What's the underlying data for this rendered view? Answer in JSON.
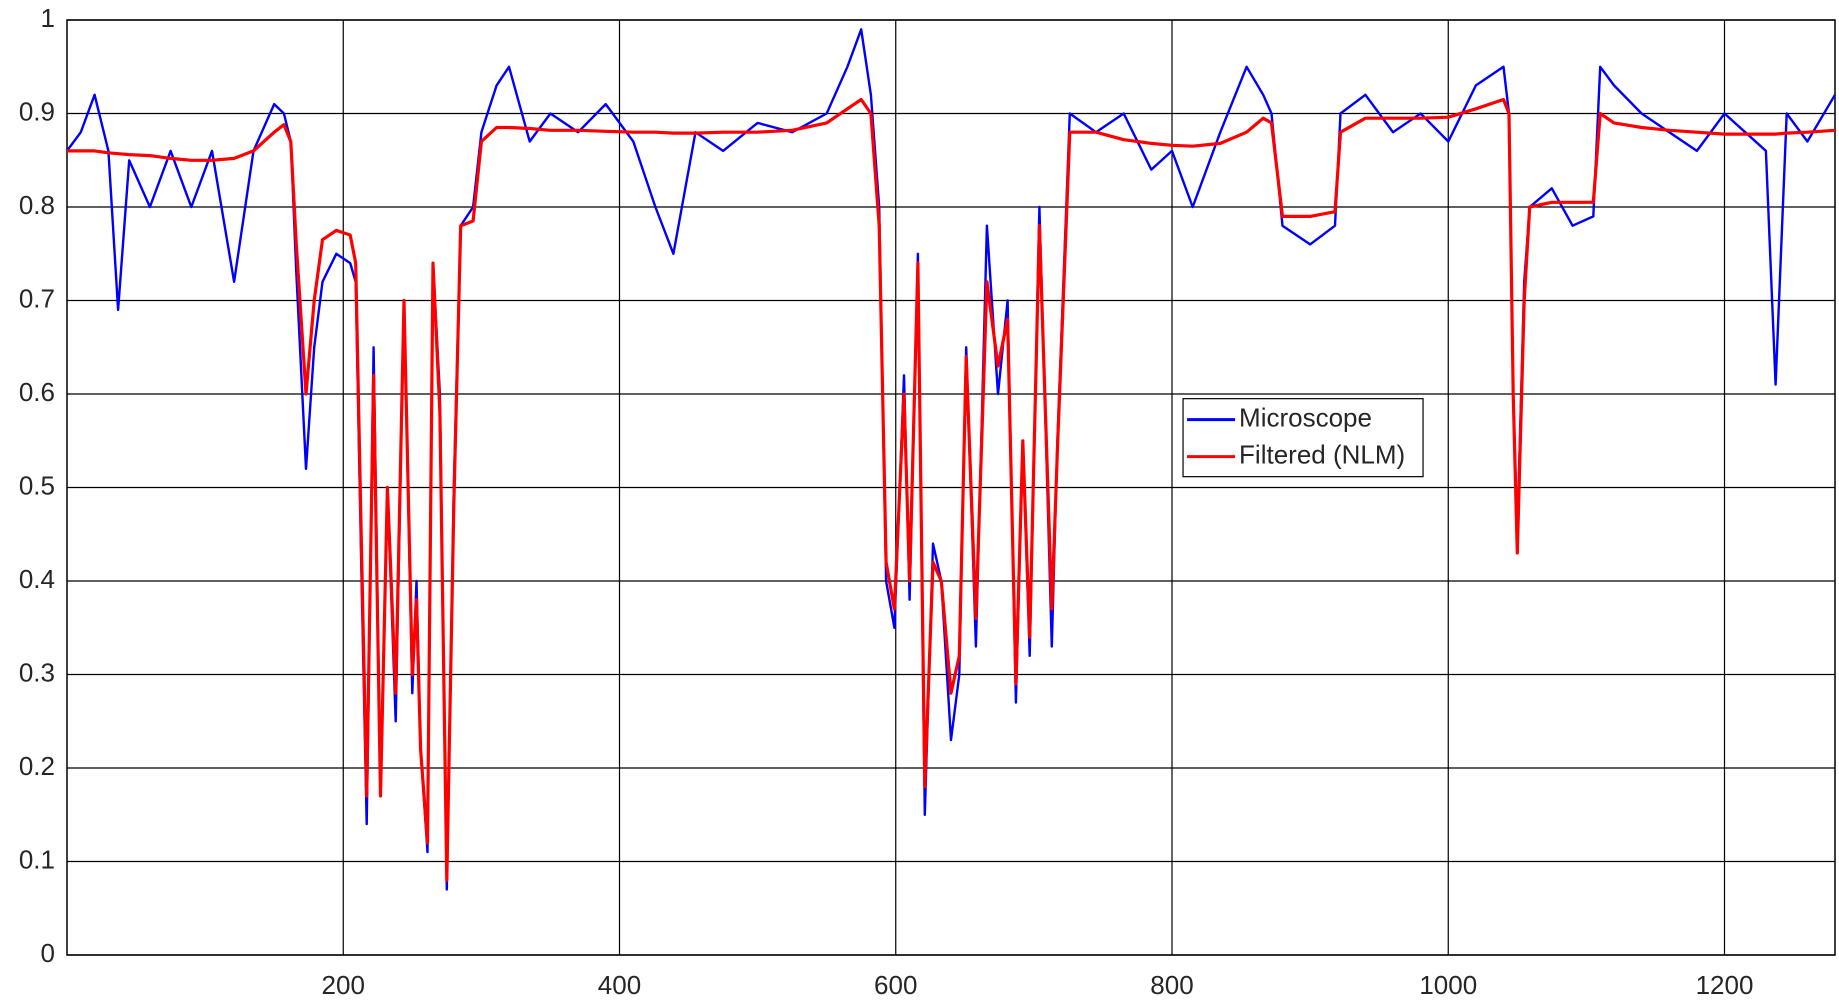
{
  "chart_data": {
    "type": "line",
    "x": [
      0,
      10,
      20,
      30,
      37,
      45,
      60,
      75,
      90,
      105,
      121,
      135,
      150,
      157,
      162,
      166,
      173,
      179,
      185,
      195,
      205,
      209,
      213,
      217,
      222,
      227,
      232,
      238,
      244,
      250,
      253,
      256,
      261,
      265,
      270,
      275,
      280,
      285,
      294,
      300,
      311,
      320,
      335,
      350,
      370,
      390,
      410,
      426,
      439,
      455,
      475,
      500,
      525,
      550,
      565,
      575,
      582,
      588,
      593,
      599,
      606,
      610,
      616,
      621,
      627,
      633,
      640,
      646,
      651,
      658,
      666,
      674,
      681,
      687,
      692,
      697,
      704,
      713,
      717,
      726,
      745,
      765,
      785,
      800,
      815,
      835,
      854,
      866,
      872,
      880,
      900,
      918,
      922,
      940,
      960,
      980,
      1000,
      1020,
      1040,
      1044,
      1047,
      1050,
      1055,
      1059,
      1075,
      1090,
      1105,
      1110,
      1120,
      1140,
      1160,
      1180,
      1200,
      1215,
      1230,
      1237,
      1245,
      1260,
      1280
    ],
    "series": [
      {
        "name": "Microscope",
        "color": "#0000ff",
        "values": [
          0.86,
          0.88,
          0.92,
          0.86,
          0.69,
          0.85,
          0.8,
          0.86,
          0.8,
          0.86,
          0.72,
          0.86,
          0.91,
          0.9,
          0.87,
          0.73,
          0.52,
          0.65,
          0.72,
          0.75,
          0.74,
          0.72,
          0.42,
          0.14,
          0.65,
          0.17,
          0.5,
          0.25,
          0.7,
          0.28,
          0.4,
          0.22,
          0.11,
          0.74,
          0.6,
          0.07,
          0.5,
          0.78,
          0.8,
          0.88,
          0.93,
          0.95,
          0.87,
          0.9,
          0.88,
          0.91,
          0.87,
          0.8,
          0.75,
          0.88,
          0.86,
          0.89,
          0.88,
          0.9,
          0.95,
          0.99,
          0.92,
          0.8,
          0.4,
          0.35,
          0.62,
          0.38,
          0.75,
          0.15,
          0.44,
          0.4,
          0.23,
          0.3,
          0.65,
          0.33,
          0.78,
          0.6,
          0.7,
          0.27,
          0.55,
          0.32,
          0.8,
          0.33,
          0.55,
          0.9,
          0.88,
          0.9,
          0.84,
          0.86,
          0.8,
          0.88,
          0.95,
          0.92,
          0.9,
          0.78,
          0.76,
          0.78,
          0.9,
          0.92,
          0.88,
          0.9,
          0.87,
          0.93,
          0.95,
          0.9,
          0.6,
          0.45,
          0.72,
          0.8,
          0.82,
          0.78,
          0.79,
          0.95,
          0.93,
          0.9,
          0.88,
          0.86,
          0.9,
          0.88,
          0.86,
          0.61,
          0.9,
          0.87,
          0.92
        ]
      },
      {
        "name": "Filtered (NLM)",
        "color": "#ff0000",
        "values": [
          0.86,
          0.86,
          0.86,
          0.858,
          0.857,
          0.856,
          0.855,
          0.852,
          0.85,
          0.85,
          0.852,
          0.86,
          0.88,
          0.888,
          0.87,
          0.76,
          0.6,
          0.7,
          0.765,
          0.775,
          0.77,
          0.74,
          0.45,
          0.17,
          0.62,
          0.17,
          0.5,
          0.28,
          0.7,
          0.3,
          0.38,
          0.22,
          0.12,
          0.74,
          0.58,
          0.08,
          0.48,
          0.78,
          0.785,
          0.87,
          0.885,
          0.885,
          0.884,
          0.882,
          0.882,
          0.881,
          0.88,
          0.88,
          0.879,
          0.879,
          0.88,
          0.88,
          0.882,
          0.89,
          0.905,
          0.915,
          0.9,
          0.78,
          0.42,
          0.37,
          0.6,
          0.4,
          0.74,
          0.18,
          0.42,
          0.4,
          0.28,
          0.32,
          0.64,
          0.36,
          0.72,
          0.63,
          0.68,
          0.29,
          0.55,
          0.34,
          0.78,
          0.37,
          0.54,
          0.88,
          0.88,
          0.872,
          0.868,
          0.866,
          0.865,
          0.868,
          0.88,
          0.895,
          0.89,
          0.79,
          0.79,
          0.795,
          0.88,
          0.895,
          0.895,
          0.895,
          0.896,
          0.905,
          0.915,
          0.9,
          0.6,
          0.43,
          0.7,
          0.8,
          0.805,
          0.805,
          0.805,
          0.9,
          0.89,
          0.885,
          0.882,
          0.88,
          0.878,
          0.878,
          0.878,
          0.878,
          0.879,
          0.88,
          0.882
        ]
      }
    ],
    "xlim": [
      0,
      1280
    ],
    "ylim": [
      0,
      1
    ],
    "xticks": [
      200,
      400,
      600,
      800,
      1000,
      1200
    ],
    "yticks": [
      0,
      0.1,
      0.2,
      0.3,
      0.4,
      0.5,
      0.6,
      0.7,
      0.8,
      0.9,
      1
    ],
    "grid": true,
    "legend": "center-right"
  }
}
